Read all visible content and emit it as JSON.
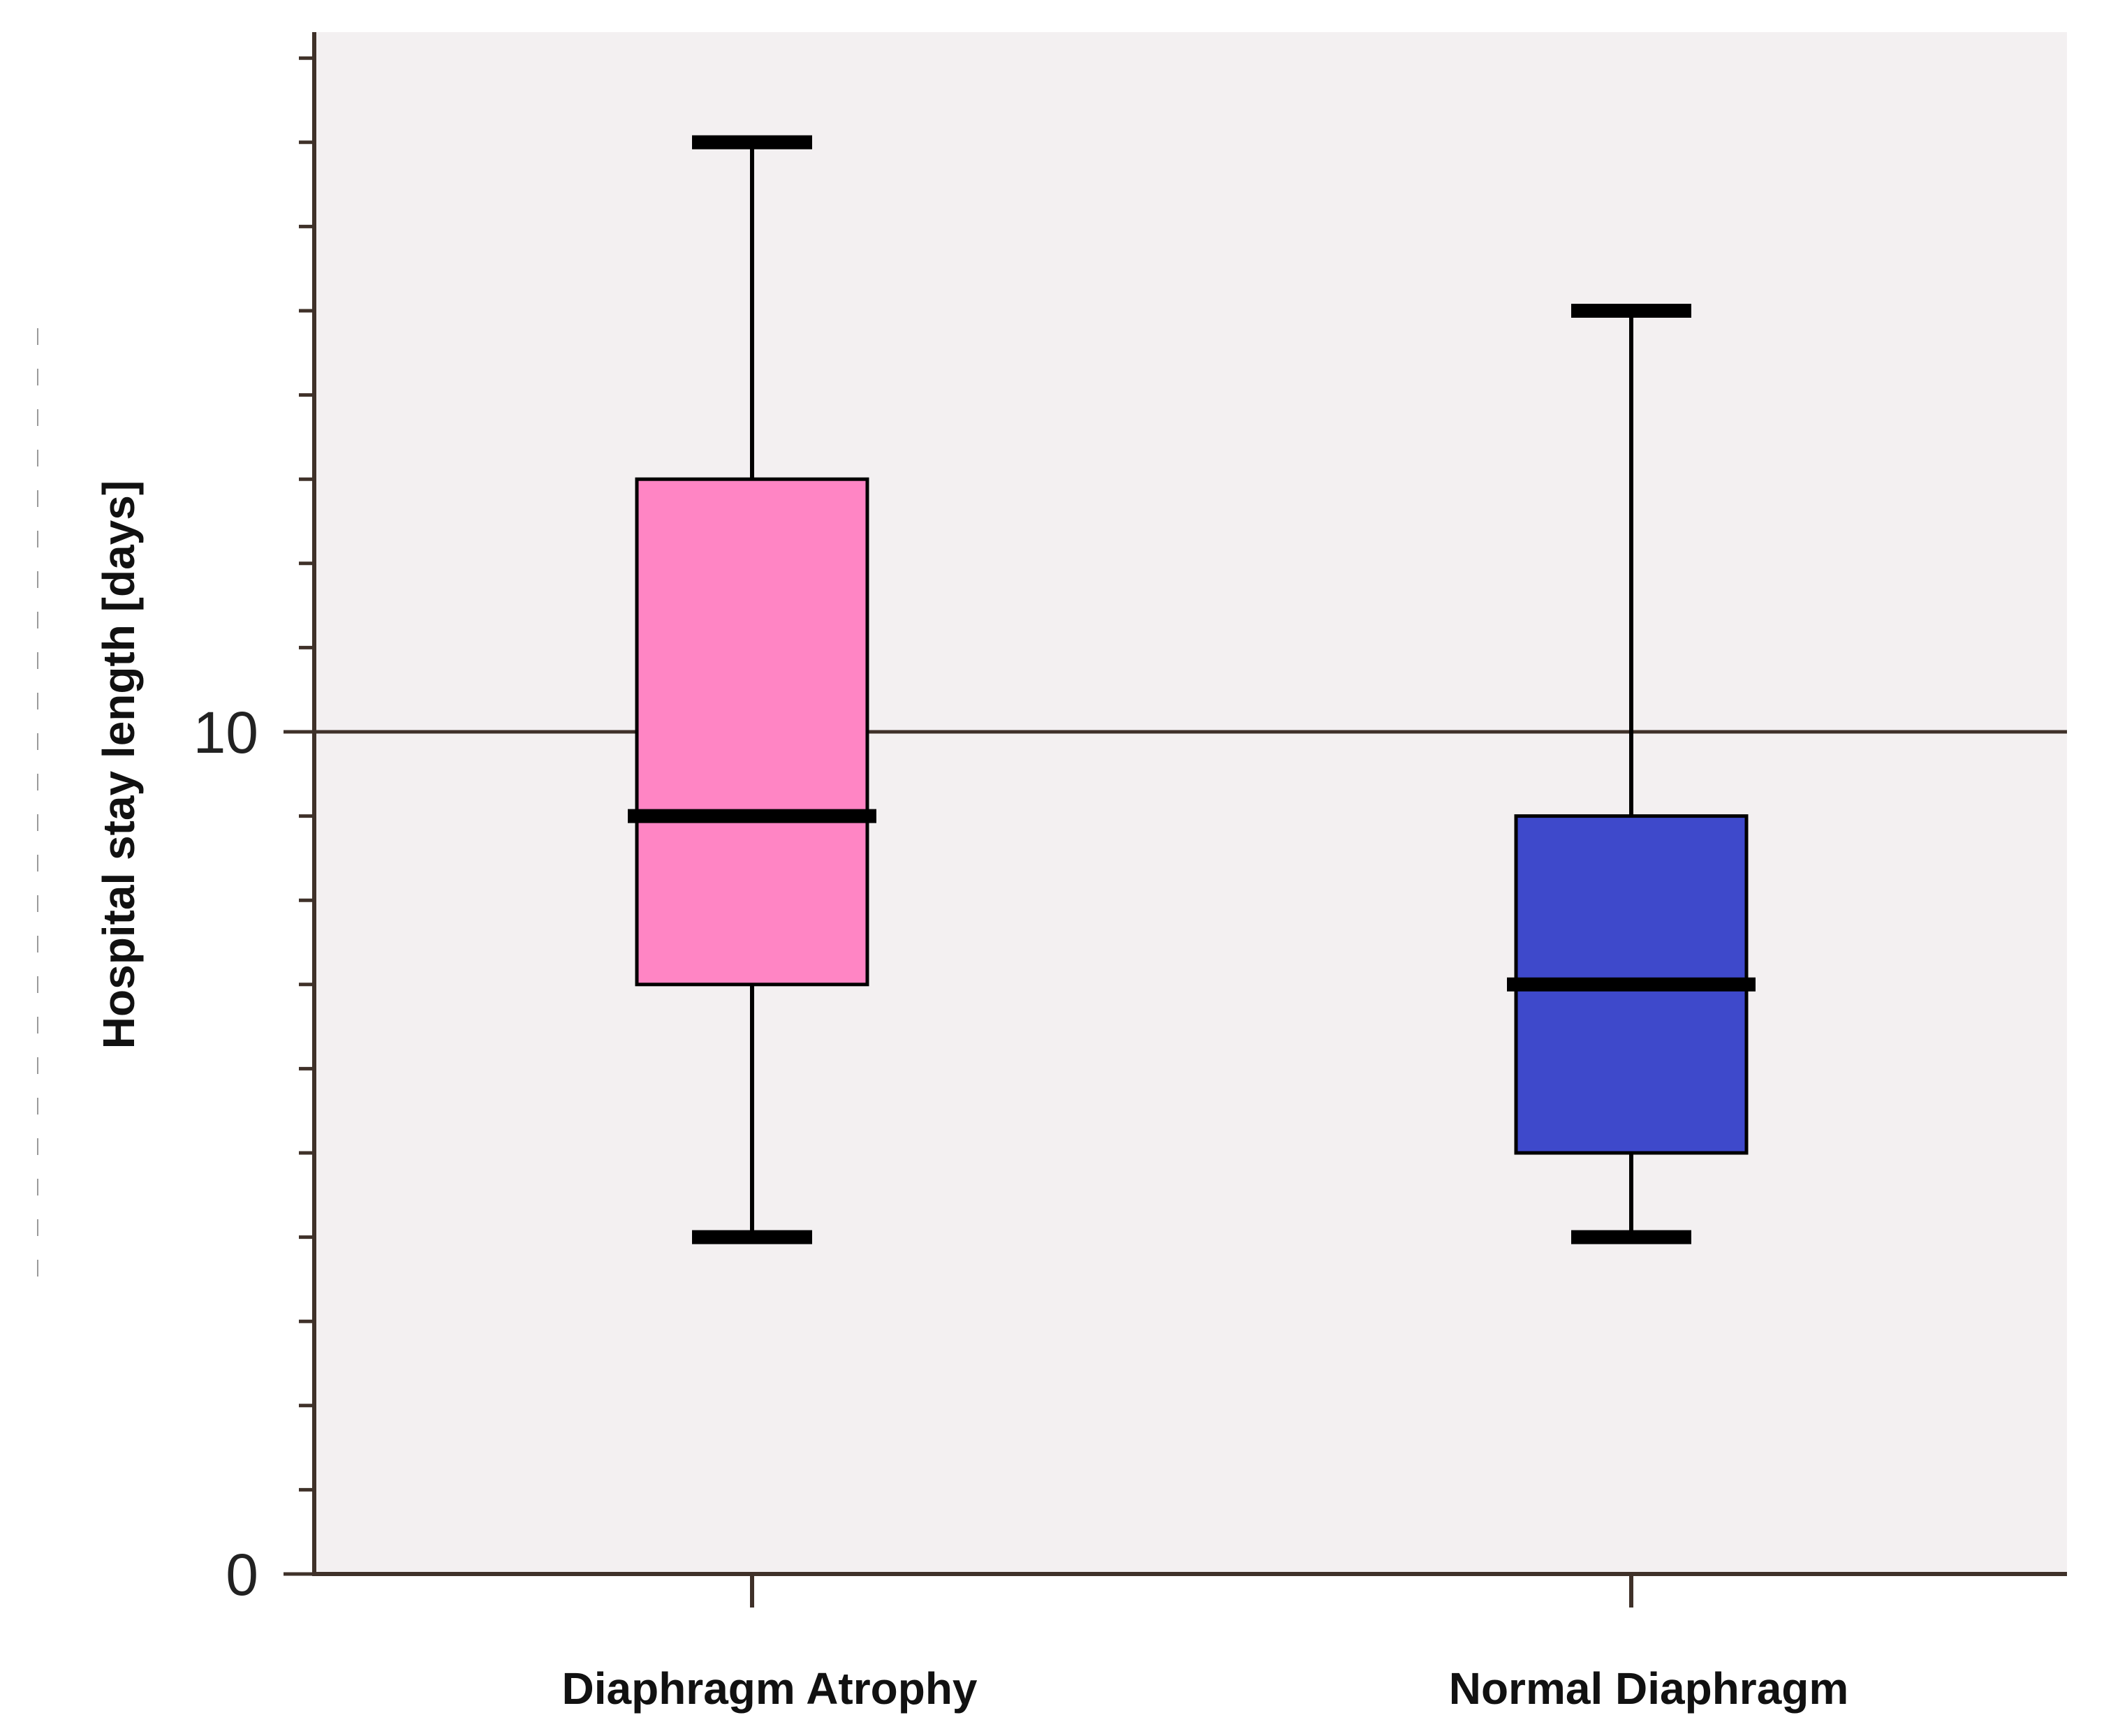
{
  "chart_data": {
    "type": "boxplot",
    "title": "",
    "xlabel": "",
    "ylabel": "Hospital stay length [days]",
    "ylim": [
      0,
      18
    ],
    "yticks_labeled": [
      0,
      10
    ],
    "yticks_minor_step": 1,
    "grid": "horizontal line at 10",
    "categories": [
      "Diaphragm Atrophy",
      "Normal Diaphragm"
    ],
    "series": [
      {
        "name": "Diaphragm Atrophy",
        "whisker_low": 4,
        "q1": 7,
        "median": 9,
        "q3": 13,
        "whisker_high": 17,
        "color": "#ff85c4"
      },
      {
        "name": "Normal Diaphragm",
        "whisker_low": 4,
        "q1": 5,
        "median": 7,
        "q3": 9,
        "whisker_high": 15,
        "color": "#3e49cb"
      }
    ]
  },
  "colors": {
    "plot_background": "#f3f0f1",
    "axis": "#3f3129",
    "whisker": "#000000"
  }
}
